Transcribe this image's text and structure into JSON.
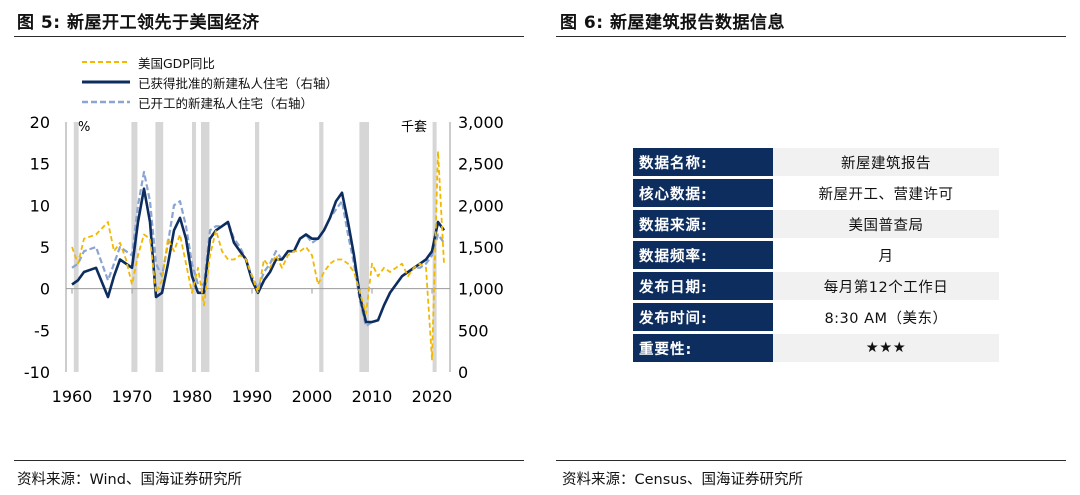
{
  "left": {
    "title": "图 5:  新屋开工领先于美国经济",
    "source": "资料来源：Wind、国海证券研究所"
  },
  "right": {
    "title": "图 6:  新屋建筑报告数据信息",
    "source": "资料来源：Census、国海证券研究所",
    "table": [
      {
        "key": "数据名称:",
        "value": "新屋建筑报告"
      },
      {
        "key": "核心数据:",
        "value": "新屋开工、营建许可"
      },
      {
        "key": "数据来源:",
        "value": "美国普查局"
      },
      {
        "key": "数据频率:",
        "value": "月"
      },
      {
        "key": "发布日期:",
        "value": "每月第12个工作日"
      },
      {
        "key": "发布时间:",
        "value": "8:30 AM（美东）"
      },
      {
        "key": "重要性:",
        "value": "★★★"
      }
    ]
  },
  "chart_data": {
    "type": "line",
    "left_axis": {
      "unit": "%",
      "ylim": [
        -10,
        20
      ],
      "ticks": [
        -10,
        -5,
        0,
        5,
        10,
        15,
        20
      ]
    },
    "right_axis": {
      "unit": "千套",
      "ylim": [
        0,
        3000
      ],
      "ticks": [
        0,
        500,
        1000,
        1500,
        2000,
        2500,
        3000
      ],
      "tick_labels": [
        "0",
        "500",
        "1,000",
        "1,500",
        "2,000",
        "2,500",
        "3,000"
      ]
    },
    "x_ticks": [
      1960,
      1970,
      1980,
      1990,
      2000,
      2010,
      2020
    ],
    "xlim": [
      1959,
      2023
    ],
    "recessions": [
      [
        1960.3,
        1961.1
      ],
      [
        1969.9,
        1970.9
      ],
      [
        1973.9,
        1975.2
      ],
      [
        1980.0,
        1980.6
      ],
      [
        1981.5,
        1982.9
      ],
      [
        1990.5,
        1991.2
      ],
      [
        2001.2,
        2001.9
      ],
      [
        2007.9,
        2009.5
      ],
      [
        2020.1,
        2020.4
      ]
    ],
    "series": [
      {
        "name": "美国GDP同比",
        "axis": "left",
        "color": "#f2b800",
        "dash": true,
        "points": [
          [
            1960,
            5
          ],
          [
            1961,
            3
          ],
          [
            1962,
            6
          ],
          [
            1964,
            6.5
          ],
          [
            1966,
            8
          ],
          [
            1967,
            4.5
          ],
          [
            1968,
            5.5
          ],
          [
            1969,
            3.5
          ],
          [
            1970,
            0.5
          ],
          [
            1971,
            4
          ],
          [
            1972,
            6.5
          ],
          [
            1973,
            6
          ],
          [
            1974,
            -0.5
          ],
          [
            1975,
            1
          ],
          [
            1976,
            6
          ],
          [
            1977,
            4.5
          ],
          [
            1978,
            6.5
          ],
          [
            1979,
            3
          ],
          [
            1980,
            -0.5
          ],
          [
            1981,
            2.5
          ],
          [
            1982,
            -2
          ],
          [
            1983,
            4
          ],
          [
            1984,
            7
          ],
          [
            1985,
            4.5
          ],
          [
            1986,
            3.5
          ],
          [
            1987,
            3.5
          ],
          [
            1988,
            4
          ],
          [
            1989,
            3.5
          ],
          [
            1990,
            1.5
          ],
          [
            1991,
            -0.5
          ],
          [
            1992,
            3.5
          ],
          [
            1993,
            2.5
          ],
          [
            1994,
            4
          ],
          [
            1995,
            2.5
          ],
          [
            1996,
            4
          ],
          [
            1997,
            4.5
          ],
          [
            1998,
            4.5
          ],
          [
            1999,
            5
          ],
          [
            2000,
            4
          ],
          [
            2001,
            0.5
          ],
          [
            2002,
            2
          ],
          [
            2003,
            3
          ],
          [
            2004,
            3.5
          ],
          [
            2005,
            3.5
          ],
          [
            2006,
            3
          ],
          [
            2007,
            2
          ],
          [
            2008,
            -0.5
          ],
          [
            2009,
            -3
          ],
          [
            2010,
            3
          ],
          [
            2011,
            1.5
          ],
          [
            2012,
            2.5
          ],
          [
            2013,
            2
          ],
          [
            2014,
            2.5
          ],
          [
            2015,
            3
          ],
          [
            2016,
            1.5
          ],
          [
            2017,
            2.5
          ],
          [
            2018,
            3
          ],
          [
            2019,
            2.5
          ],
          [
            2020,
            -8.5
          ],
          [
            2021,
            16.5
          ],
          [
            2022,
            3
          ]
        ]
      },
      {
        "name": "已获得批准的新建私人住宅（右轴）",
        "axis": "right",
        "color": "#0d2d5e",
        "dash": false,
        "width": 2.6,
        "points": [
          [
            1960,
            1050
          ],
          [
            1961,
            1100
          ],
          [
            1962,
            1200
          ],
          [
            1964,
            1250
          ],
          [
            1966,
            900
          ],
          [
            1967,
            1150
          ],
          [
            1968,
            1350
          ],
          [
            1969,
            1300
          ],
          [
            1970,
            1250
          ],
          [
            1971,
            1800
          ],
          [
            1972,
            2200
          ],
          [
            1973,
            1800
          ],
          [
            1974,
            900
          ],
          [
            1975,
            950
          ],
          [
            1976,
            1300
          ],
          [
            1977,
            1700
          ],
          [
            1978,
            1850
          ],
          [
            1979,
            1600
          ],
          [
            1980,
            1150
          ],
          [
            1981,
            950
          ],
          [
            1982,
            950
          ],
          [
            1983,
            1600
          ],
          [
            1984,
            1700
          ],
          [
            1985,
            1750
          ],
          [
            1986,
            1800
          ],
          [
            1987,
            1550
          ],
          [
            1988,
            1450
          ],
          [
            1989,
            1350
          ],
          [
            1990,
            1100
          ],
          [
            1991,
            950
          ],
          [
            1992,
            1100
          ],
          [
            1993,
            1200
          ],
          [
            1994,
            1350
          ],
          [
            1995,
            1350
          ],
          [
            1996,
            1450
          ],
          [
            1997,
            1450
          ],
          [
            1998,
            1600
          ],
          [
            1999,
            1650
          ],
          [
            2000,
            1600
          ],
          [
            2001,
            1600
          ],
          [
            2002,
            1700
          ],
          [
            2003,
            1850
          ],
          [
            2004,
            2050
          ],
          [
            2005,
            2150
          ],
          [
            2006,
            1800
          ],
          [
            2007,
            1400
          ],
          [
            2008,
            900
          ],
          [
            2009,
            600
          ],
          [
            2010,
            600
          ],
          [
            2011,
            620
          ],
          [
            2012,
            800
          ],
          [
            2013,
            950
          ],
          [
            2014,
            1050
          ],
          [
            2015,
            1150
          ],
          [
            2016,
            1200
          ],
          [
            2017,
            1250
          ],
          [
            2018,
            1300
          ],
          [
            2019,
            1350
          ],
          [
            2020,
            1450
          ],
          [
            2021,
            1800
          ],
          [
            2022,
            1700
          ]
        ]
      },
      {
        "name": "已开工的新建私人住宅（右轴）",
        "axis": "right",
        "color": "#8aa4d4",
        "dash": true,
        "width": 2.2,
        "points": [
          [
            1960,
            1250
          ],
          [
            1961,
            1300
          ],
          [
            1962,
            1450
          ],
          [
            1964,
            1500
          ],
          [
            1966,
            1100
          ],
          [
            1967,
            1300
          ],
          [
            1968,
            1500
          ],
          [
            1969,
            1450
          ],
          [
            1970,
            1400
          ],
          [
            1971,
            2000
          ],
          [
            1972,
            2400
          ],
          [
            1973,
            2050
          ],
          [
            1974,
            1300
          ],
          [
            1975,
            1150
          ],
          [
            1976,
            1550
          ],
          [
            1977,
            2000
          ],
          [
            1978,
            2050
          ],
          [
            1979,
            1750
          ],
          [
            1980,
            1300
          ],
          [
            1981,
            1050
          ],
          [
            1982,
            1050
          ],
          [
            1983,
            1700
          ],
          [
            1984,
            1750
          ],
          [
            1985,
            1750
          ],
          [
            1986,
            1800
          ],
          [
            1987,
            1600
          ],
          [
            1988,
            1500
          ],
          [
            1989,
            1350
          ],
          [
            1990,
            1150
          ],
          [
            1991,
            1000
          ],
          [
            1992,
            1200
          ],
          [
            1993,
            1300
          ],
          [
            1994,
            1450
          ],
          [
            1995,
            1350
          ],
          [
            1996,
            1450
          ],
          [
            1997,
            1450
          ],
          [
            1998,
            1600
          ],
          [
            1999,
            1650
          ],
          [
            2000,
            1550
          ],
          [
            2001,
            1600
          ],
          [
            2002,
            1700
          ],
          [
            2003,
            1850
          ],
          [
            2004,
            1950
          ],
          [
            2005,
            2050
          ],
          [
            2006,
            1650
          ],
          [
            2007,
            1300
          ],
          [
            2008,
            850
          ],
          [
            2009,
            550
          ],
          [
            2010,
            600
          ],
          [
            2011,
            620
          ],
          [
            2012,
            800
          ],
          [
            2013,
            950
          ],
          [
            2014,
            1050
          ],
          [
            2015,
            1150
          ],
          [
            2016,
            1200
          ],
          [
            2017,
            1250
          ],
          [
            2018,
            1250
          ],
          [
            2019,
            1300
          ],
          [
            2020,
            1400
          ],
          [
            2021,
            1650
          ],
          [
            2022,
            1550
          ]
        ]
      }
    ]
  }
}
